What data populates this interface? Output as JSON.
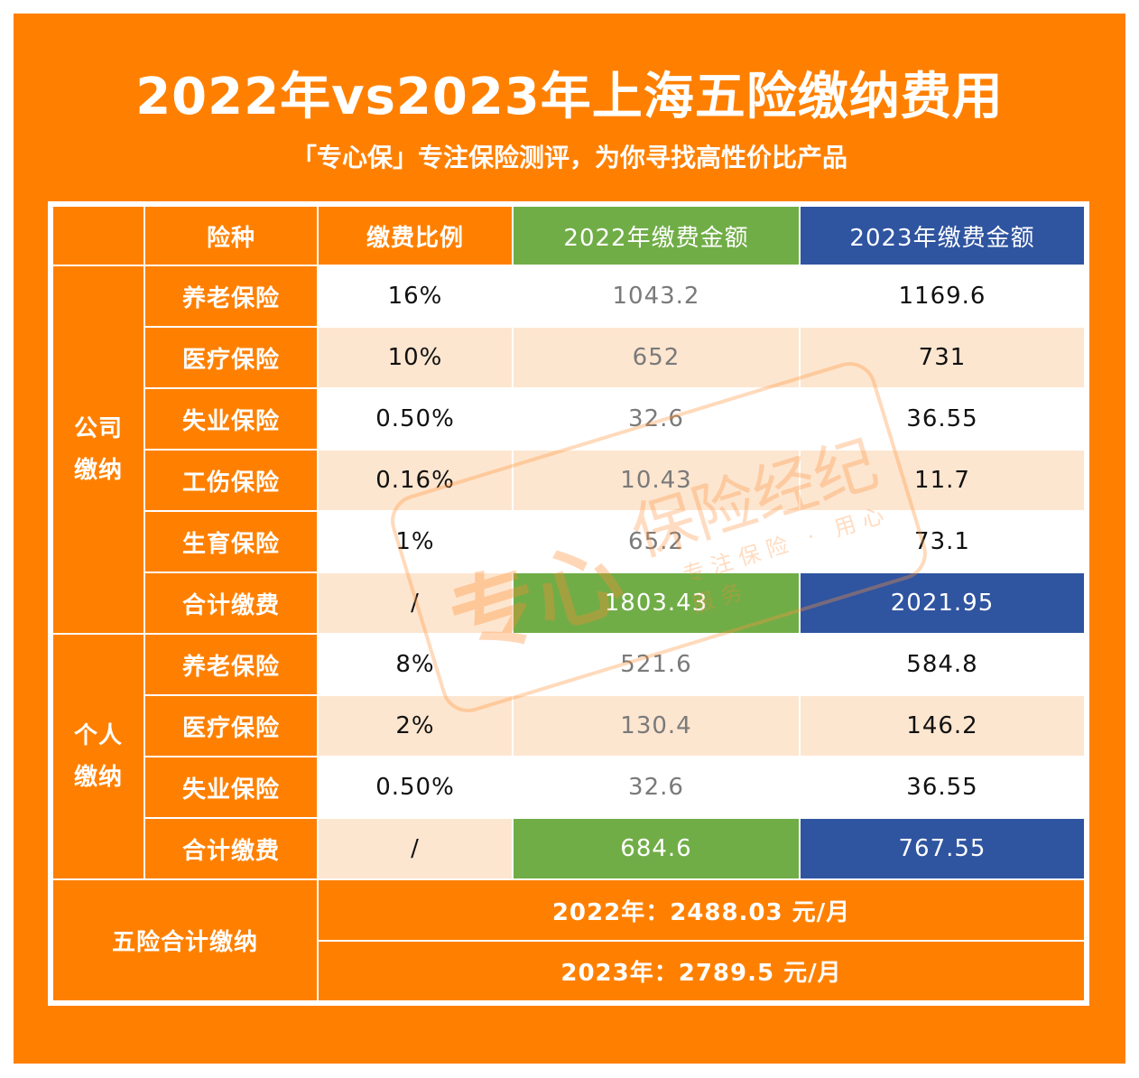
{
  "title": "2022年vs2023年上海五险缴纳费用",
  "subtitle": "「专心保」专注保险测评，为你寻找高性价比产品",
  "colors": {
    "orange": "#FF8000",
    "green": "#70AD47",
    "blue": "#2F54A0",
    "peach": "#FDE6D0"
  },
  "headers": [
    "险种",
    "缴费比例",
    "2022年缴费金额",
    "2023年缴费金额"
  ],
  "groups": [
    {
      "label": "公司\n缴纳",
      "rows": [
        [
          "养老保险",
          "16%",
          "1043.2",
          "1169.6"
        ],
        [
          "医疗保险",
          "10%",
          "652",
          "731"
        ],
        [
          "失业保险",
          "0.50%",
          "32.6",
          "36.55"
        ],
        [
          "工伤保险",
          "0.16%",
          "10.43",
          "11.7"
        ],
        [
          "生育保险",
          "1%",
          "65.2",
          "73.1"
        ],
        [
          "合计缴费",
          "/",
          "1803.43",
          "2021.95"
        ]
      ]
    },
    {
      "label": "个人\n缴纳",
      "rows": [
        [
          "养老保险",
          "8%",
          "521.6",
          "584.8"
        ],
        [
          "医疗保险",
          "2%",
          "130.4",
          "146.2"
        ],
        [
          "失业保险",
          "0.50%",
          "32.6",
          "36.55"
        ],
        [
          "合计缴费",
          "/",
          "684.6",
          "767.55"
        ]
      ]
    }
  ],
  "summary": {
    "label": "五险合计缴纳",
    "y2022": "2022年：2488.03 元/月",
    "y2023": "2023年：2789.5 元/月"
  },
  "watermark": {
    "brand": "专心",
    "text": "保险经纪",
    "slogan": "专注保险 · 用心服务"
  }
}
